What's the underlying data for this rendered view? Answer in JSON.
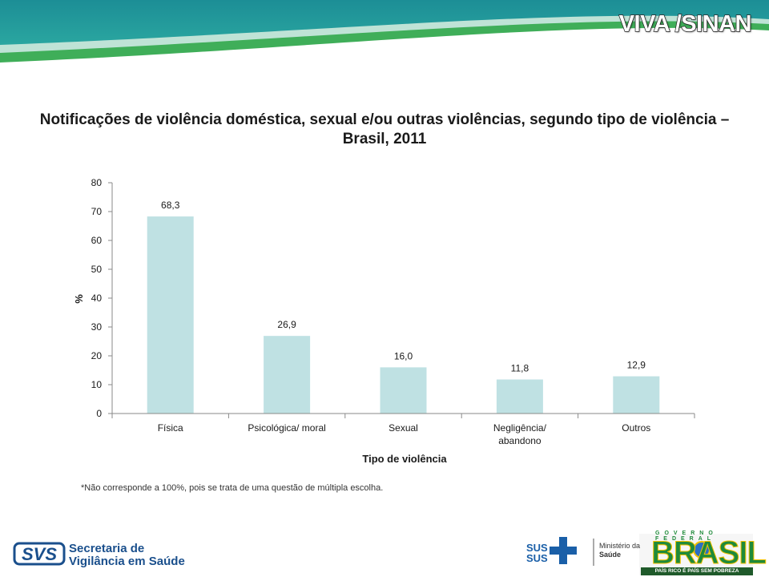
{
  "slide": {
    "title": "VIVA /SINAN",
    "colors": {
      "header_teal": "#1a8a8f",
      "header_light": "#bfe3d6",
      "header_green": "#3fae59"
    }
  },
  "chart_data": {
    "type": "bar",
    "title": "Notificações de violência doméstica, sexual e/ou outras violências, segundo tipo de violência – Brasil, 2011",
    "xlabel": "Tipo de violência",
    "ylabel": "%",
    "categories": [
      [
        "Física"
      ],
      [
        "Psicológica/ moral"
      ],
      [
        "Sexual"
      ],
      [
        "Negligência/",
        "abandono"
      ],
      [
        "Outros"
      ]
    ],
    "values": [
      68.3,
      26.9,
      16.0,
      11.8,
      12.9
    ],
    "data_labels": [
      "68,3",
      "26,9",
      "16,0",
      "11,8",
      "12,9"
    ],
    "ylim": [
      0,
      80
    ],
    "yticks": [
      0,
      10,
      20,
      30,
      40,
      50,
      60,
      70,
      80
    ],
    "bar_color": "#bfe1e3",
    "grid": false,
    "legend": false
  },
  "footnote": "*Não corresponde a 100%, pois se trata de uma questão de múltipla escolha.",
  "footer": {
    "svs_logo_text": "SVS",
    "svs_line1": "Secretaria de",
    "svs_line2": "Vigilância em Saúde",
    "sus_text": "SUS",
    "ministerio_line1": "Ministério da",
    "ministerio_line2": "Saúde",
    "gov_text": "GOVERNO FEDERAL",
    "brasil_text": "BRASIL",
    "brasil_slogan": "PAÍS RICO É PAÍS SEM POBREZA"
  }
}
